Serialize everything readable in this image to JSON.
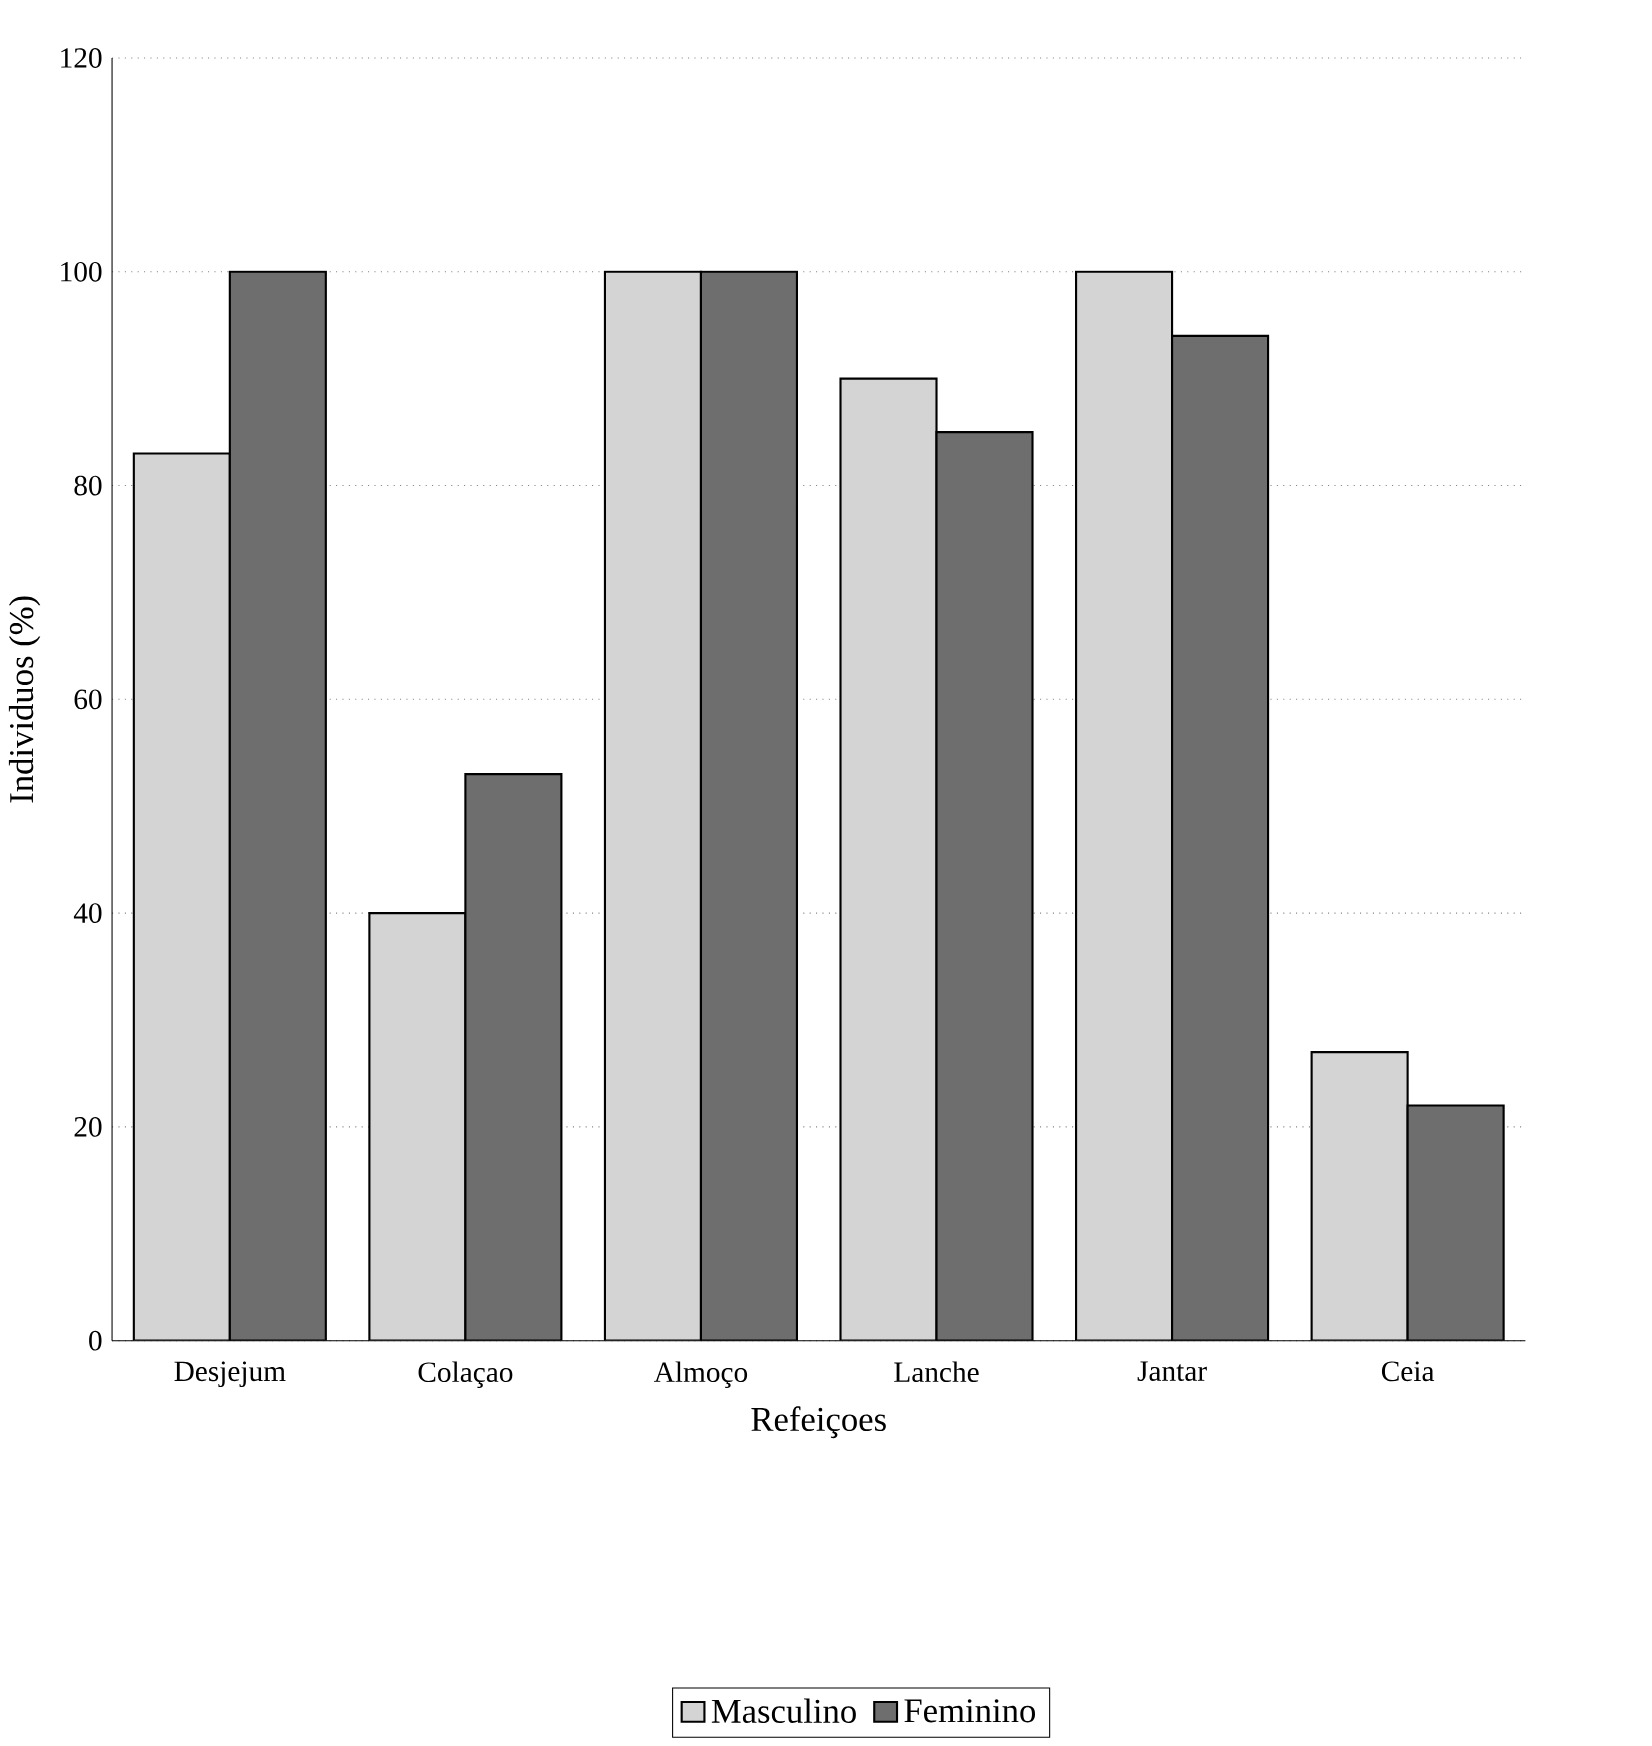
{
  "chart_data": {
    "type": "bar",
    "xlabel": "Refeiçoes",
    "ylabel": "Individuos (%)",
    "categories": [
      "Desjejum",
      "Colaçao",
      "Almoço",
      "Lanche",
      "Jantar",
      "Ceia"
    ],
    "series": [
      {
        "name": "Masculino",
        "color": "#d4d4d4",
        "values": [
          83,
          40,
          100,
          90,
          100,
          27
        ]
      },
      {
        "name": "Feminino",
        "color": "#6e6e6e",
        "values": [
          100,
          53,
          100,
          85,
          94,
          22
        ]
      }
    ],
    "ylim": [
      0,
      120
    ],
    "yticks": [
      0,
      20,
      40,
      60,
      80,
      100,
      120
    ],
    "grid": "y",
    "legend": "bottom"
  }
}
